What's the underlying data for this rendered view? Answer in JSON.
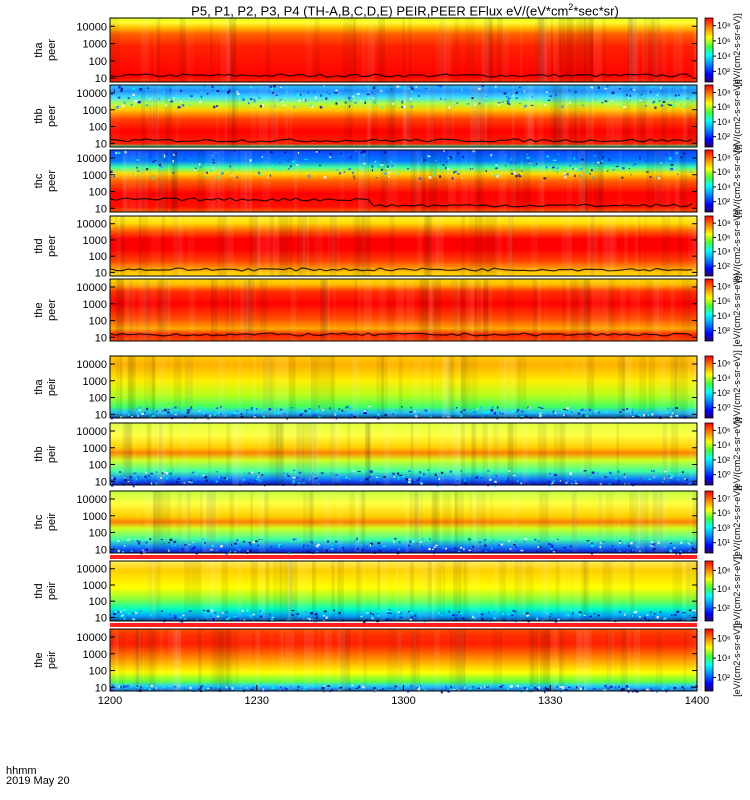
{
  "chart_data": {
    "type": "heatmap",
    "title": "P5, P1, P2, P3, P4 (TH-A,B,C,D,E) PEIR,PEER EFlux eV/(eV*cm",
    "title_sup": "2",
    "title_tail": "*sec*sr)",
    "x_ticks": [
      "1200",
      "1230",
      "1300",
      "1330",
      "1400"
    ],
    "x_range": [
      "12:00",
      "14:00"
    ],
    "y_scale": "log",
    "y_ticks": [
      "10",
      "100",
      "1000",
      "10000"
    ],
    "colorbar_label": "[eV/(cm2-s-sr-eV)]",
    "colormap": [
      "#3a0080",
      "#0000ff",
      "#00a0ff",
      "#00ffff",
      "#40ff40",
      "#ffff00",
      "#ff8000",
      "#ff0000"
    ],
    "panels": [
      {
        "label1": "tha",
        "label2": "peer",
        "cb_ticks": [
          "10²",
          "10⁴",
          "10⁶",
          "10⁸"
        ],
        "cb_range": [
          1,
          8
        ]
      },
      {
        "label1": "thb",
        "label2": "peer",
        "cb_ticks": [
          "10²",
          "10⁴",
          "10⁶",
          "10⁸"
        ],
        "cb_range": [
          1,
          8
        ]
      },
      {
        "label1": "thc",
        "label2": "peer",
        "cb_ticks": [
          "10²",
          "10⁴",
          "10⁶",
          "10⁸"
        ],
        "cb_range": [
          1,
          8
        ]
      },
      {
        "label1": "thd",
        "label2": "peer",
        "cb_ticks": [
          "10²",
          "10⁴",
          "10⁶",
          "10⁸"
        ],
        "cb_range": [
          1,
          8
        ]
      },
      {
        "label1": "the",
        "label2": "peer",
        "cb_ticks": [
          "10²",
          "10⁴",
          "10⁶",
          "10⁸"
        ],
        "cb_range": [
          1,
          8
        ]
      },
      {
        "label1": "tha",
        "label2": "peir",
        "cb_ticks": [
          "10⁰",
          "10²",
          "10⁴",
          "10⁶"
        ],
        "cb_range": [
          0,
          7
        ]
      },
      {
        "label1": "thb",
        "label2": "peir",
        "cb_ticks": [
          "10⁰",
          "10²",
          "10⁴",
          "10⁶"
        ],
        "cb_range": [
          0,
          7
        ]
      },
      {
        "label1": "thc",
        "label2": "peir",
        "cb_ticks": [
          "10¹",
          "10³",
          "10⁵",
          "10⁷"
        ],
        "cb_range": [
          0,
          7
        ]
      },
      {
        "label1": "thd",
        "label2": "peir",
        "cb_ticks": [
          "10²",
          "10⁴",
          "10⁶"
        ],
        "cb_range": [
          1,
          7
        ]
      },
      {
        "label1": "the",
        "label2": "peir",
        "cb_ticks": [
          "10²",
          "10⁴",
          "10⁶"
        ],
        "cb_range": [
          1,
          7
        ]
      }
    ]
  },
  "footer": {
    "hhmm": "hhmm",
    "date": "2019 May 20"
  }
}
